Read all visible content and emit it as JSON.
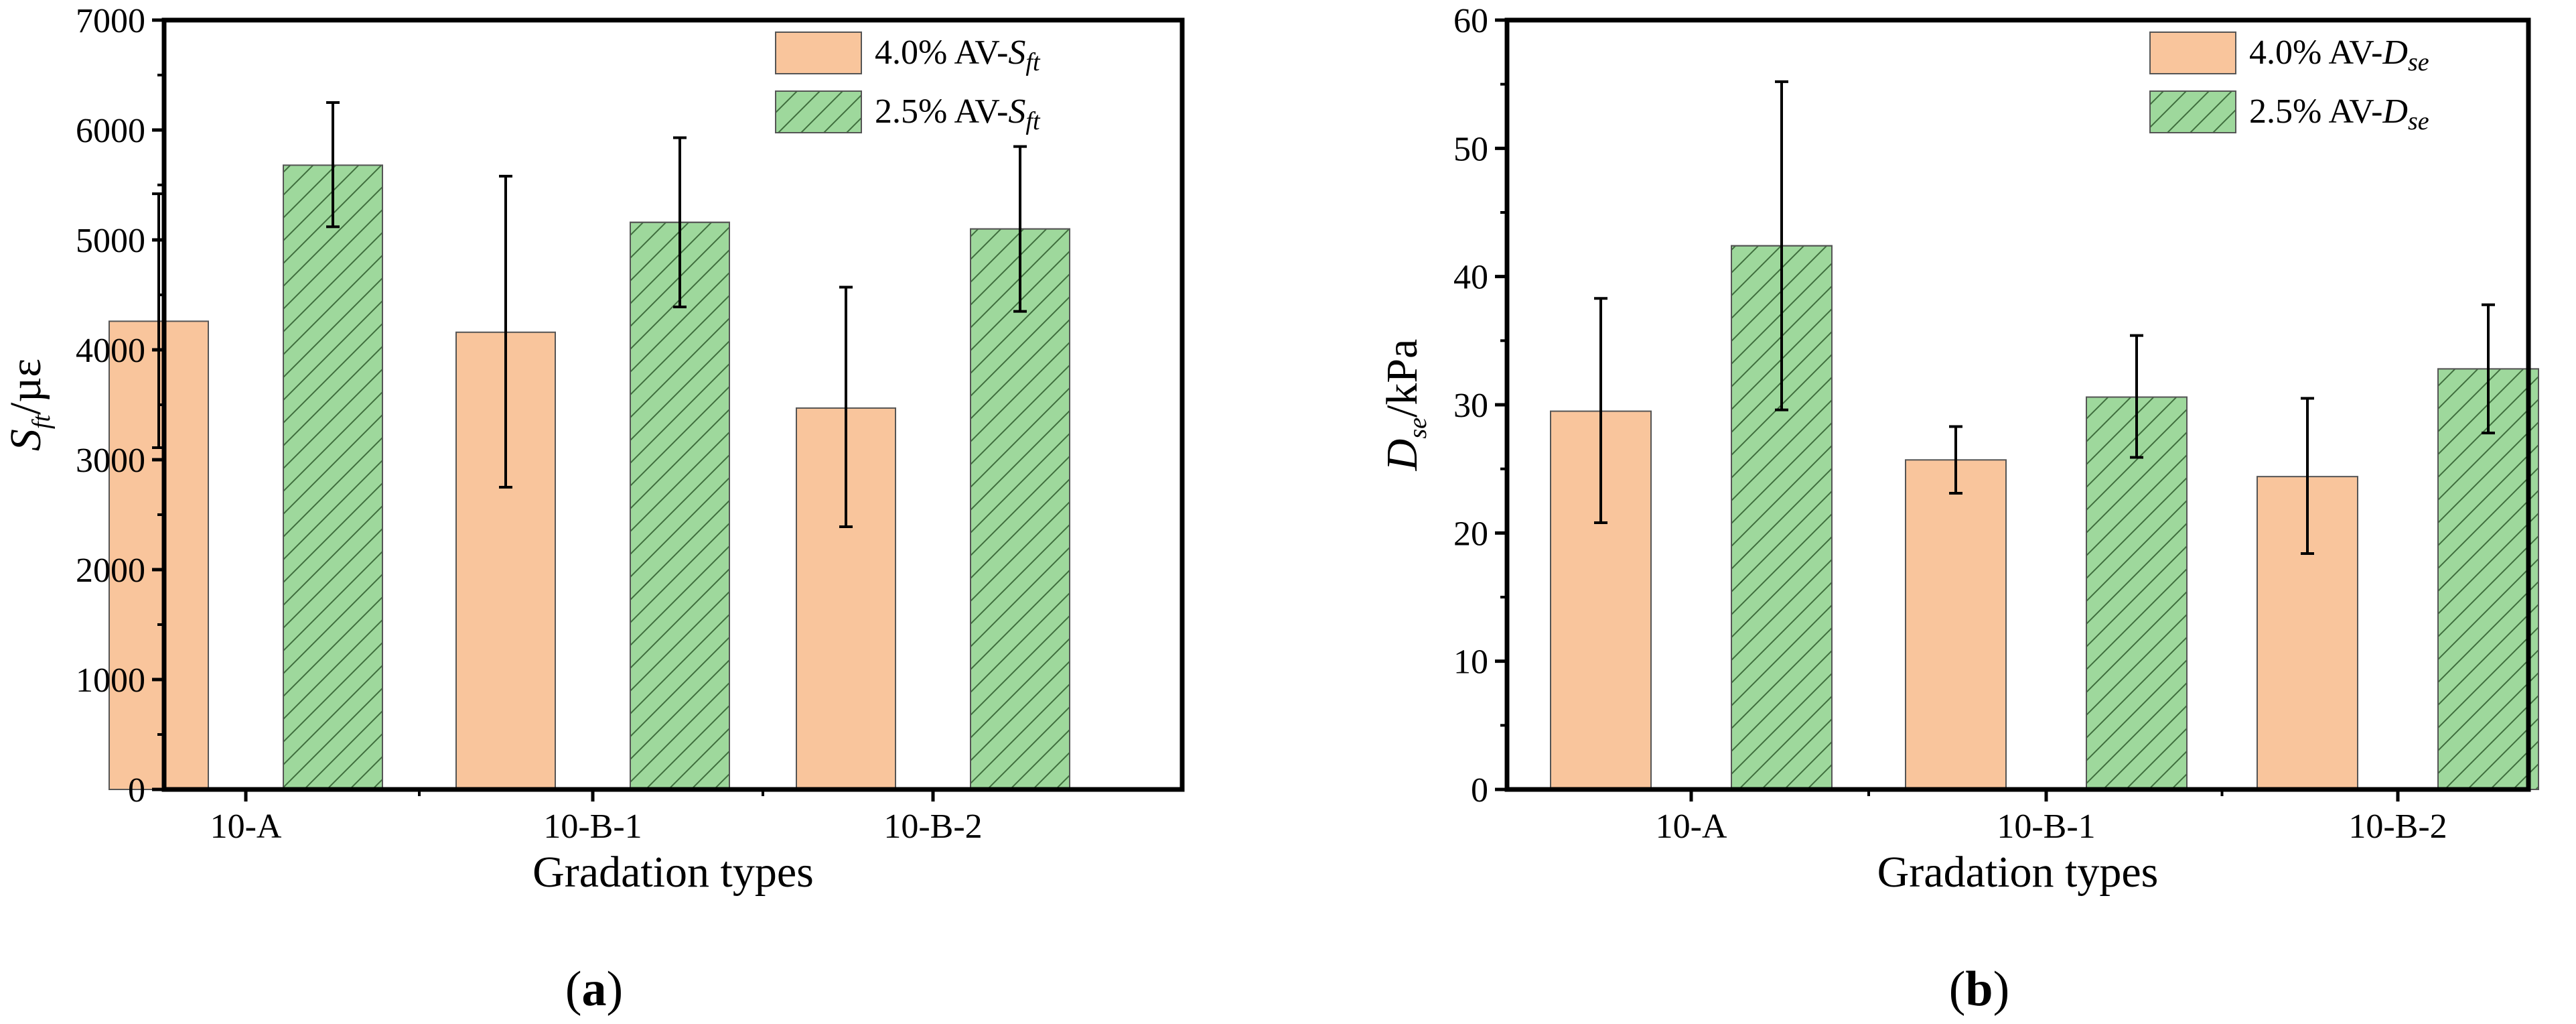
{
  "colors": {
    "orange_fill": "#F9C59C",
    "green_fill": "#9ED89C",
    "hatch": "#3f6e3d",
    "edge": "#555555",
    "axis": "#000000"
  },
  "chart_data": [
    {
      "type": "bar",
      "panel_label": {
        "open": "(",
        "letter": "a",
        "close": ")"
      },
      "categories": [
        "10-A",
        "10-B-1",
        "10-B-2"
      ],
      "xlabel": "Gradation types",
      "ylabel": {
        "main": "S",
        "sub": "ft",
        "tail": "/µε"
      },
      "ylim": [
        0,
        7000
      ],
      "yticks": [
        0,
        1000,
        2000,
        3000,
        4000,
        5000,
        6000,
        7000
      ],
      "ytick_labels": [
        "0",
        "1000",
        "2000",
        "3000",
        "4000",
        "5000",
        "6000",
        "7000"
      ],
      "legend_position": "top-right",
      "series": [
        {
          "name": "4.0% AV-Sft",
          "legend_prefix": "4.0% AV-",
          "legend_main": "S",
          "legend_sub": "ft",
          "values": [
            4260,
            4160,
            3470
          ],
          "err_low": [
            3110,
            2750,
            2390
          ],
          "err_high": [
            5420,
            5580,
            4570
          ]
        },
        {
          "name": "2.5% AV-Sft",
          "legend_prefix": "2.5% AV-",
          "legend_main": "S",
          "legend_sub": "ft",
          "values": [
            5680,
            5160,
            5100
          ],
          "err_low": [
            5120,
            4390,
            4350
          ],
          "err_high": [
            6250,
            5930,
            5850
          ]
        }
      ]
    },
    {
      "type": "bar",
      "panel_label": {
        "open": "(",
        "letter": "b",
        "close": ")"
      },
      "categories": [
        "10-A",
        "10-B-1",
        "10-B-2"
      ],
      "xlabel": "Gradation types",
      "ylabel": {
        "main": "D",
        "sub": "se",
        "tail": "/kPa"
      },
      "ylim": [
        0,
        60
      ],
      "yticks": [
        0,
        10,
        20,
        30,
        40,
        50,
        60
      ],
      "ytick_labels": [
        "0",
        "10",
        "20",
        "30",
        "40",
        "50",
        "60"
      ],
      "legend_position": "top-right",
      "series": [
        {
          "name": "4.0%  AV-Dse",
          "legend_prefix": "4.0%  AV-",
          "legend_main": "D",
          "legend_sub": "se",
          "values": [
            29.5,
            25.7,
            24.4
          ],
          "err_low": [
            20.8,
            23.1,
            18.4
          ],
          "err_high": [
            38.3,
            28.3,
            30.5
          ]
        },
        {
          "name": "2.5% AV-Dse",
          "legend_prefix": "2.5% AV-",
          "legend_main": "D",
          "legend_sub": "se",
          "values": [
            42.4,
            30.6,
            32.8
          ],
          "err_low": [
            29.6,
            25.9,
            27.8
          ],
          "err_high": [
            55.2,
            35.4,
            37.8
          ]
        }
      ]
    }
  ]
}
